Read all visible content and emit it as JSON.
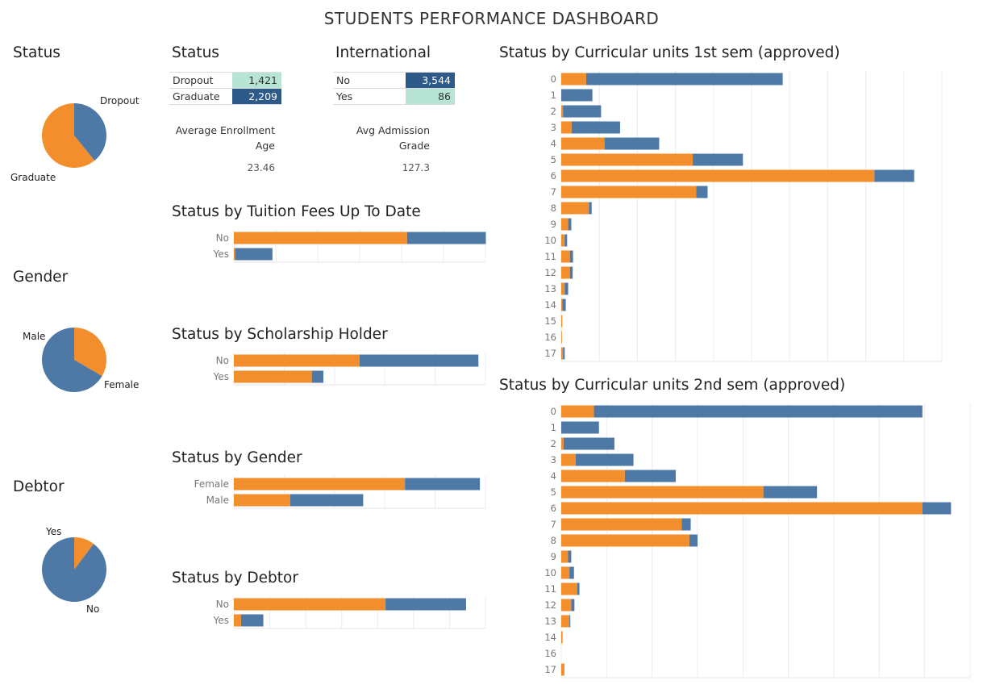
{
  "dashboard_title": "STUDENTS PERFORMANCE DASHBOARD",
  "colors": {
    "dropout": "#F28E2B",
    "graduate": "#4E79A7",
    "highlight_light": "#B7E4D5",
    "highlight_dark": "#2E5A8A"
  },
  "kpis": {
    "enrollment_age_label_line1": "Average Enrollment",
    "enrollment_age_label_line2": "Age",
    "enrollment_age_value": "23.46",
    "admission_grade_label_line1": "Avg Admission",
    "admission_grade_label_line2": "Grade",
    "admission_grade_value": "127.3"
  },
  "chart_data": [
    {
      "id": "status_pie",
      "type": "pie",
      "title": "Status",
      "slices": [
        {
          "label": "Dropout",
          "value": 1421
        },
        {
          "label": "Graduate",
          "value": 2209
        }
      ]
    },
    {
      "id": "gender_pie",
      "type": "pie",
      "title": "Gender",
      "slices": [
        {
          "label": "Male",
          "value": 1213
        },
        {
          "label": "Female",
          "value": 2417
        }
      ]
    },
    {
      "id": "debtor_pie",
      "type": "pie",
      "title": "Debtor",
      "slices": [
        {
          "label": "Yes",
          "value": 375
        },
        {
          "label": "No",
          "value": 3255
        }
      ]
    },
    {
      "id": "status_table",
      "type": "table",
      "title": "Status",
      "rows": [
        {
          "label": "Dropout",
          "value": "1,421"
        },
        {
          "label": "Graduate",
          "value": "2,209"
        }
      ]
    },
    {
      "id": "international_table",
      "type": "table",
      "title": "International",
      "rows": [
        {
          "label": "No",
          "value": "3,544"
        },
        {
          "label": "Yes",
          "value": "86"
        }
      ]
    },
    {
      "id": "tuition_bar",
      "type": "bar",
      "title": "Status by Tuition Fees Up To Date",
      "categories": [
        "No",
        "Yes"
      ],
      "series": [
        {
          "values": [
            2065,
            15
          ]
        },
        {
          "values": [
            940,
            445
          ]
        }
      ],
      "xlim": [
        0,
        3000
      ]
    },
    {
      "id": "scholarship_bar",
      "type": "bar",
      "title": "Status by Scholarship Holder",
      "categories": [
        "No",
        "Yes"
      ],
      "series": [
        {
          "values": [
            1250,
            775
          ]
        },
        {
          "values": [
            1180,
            115
          ]
        }
      ],
      "xlim": [
        0,
        2500
      ]
    },
    {
      "id": "gender_bar",
      "type": "bar",
      "title": "Status by Gender",
      "categories": [
        "Female",
        "Male"
      ],
      "series": [
        {
          "values": [
            1700,
            560
          ]
        },
        {
          "values": [
            745,
            725
          ]
        }
      ],
      "xlim": [
        0,
        2500
      ]
    },
    {
      "id": "debtor_bar",
      "type": "bar",
      "title": "Status by Debtor",
      "categories": [
        "No",
        "Yes"
      ],
      "series": [
        {
          "values": [
            2110,
            100
          ]
        },
        {
          "values": [
            1120,
            310
          ]
        }
      ],
      "xlim": [
        0,
        3500
      ]
    },
    {
      "id": "sem1_bar",
      "type": "bar",
      "title": "Status by Curricular units 1st sem (approved)",
      "categories": [
        "0",
        "1",
        "2",
        "3",
        "4",
        "5",
        "6",
        "7",
        "8",
        "9",
        "10",
        "11",
        "12",
        "13",
        "14",
        "15",
        "16",
        "17"
      ],
      "series": [
        {
          "values": [
            72,
            0,
            5,
            30,
            125,
            380,
            905,
            390,
            80,
            20,
            10,
            25,
            25,
            10,
            3,
            3,
            2,
            5
          ]
        },
        {
          "values": [
            568,
            90,
            110,
            140,
            158,
            145,
            115,
            33,
            8,
            9,
            7,
            9,
            8,
            10,
            10,
            0,
            0,
            5
          ]
        }
      ],
      "xlim": [
        0,
        1100
      ]
    },
    {
      "id": "sem2_bar",
      "type": "bar",
      "title": "Status by Curricular units 2nd sem (approved)",
      "categories": [
        "0",
        "1",
        "2",
        "3",
        "4",
        "5",
        "6",
        "7",
        "8",
        "9",
        "10",
        "11",
        "12",
        "13",
        "14",
        "16",
        "17"
      ],
      "series": [
        {
          "values": [
            72,
            0,
            5,
            32,
            140,
            445,
            795,
            265,
            282,
            15,
            18,
            35,
            22,
            18,
            3,
            0,
            7
          ]
        },
        {
          "values": [
            723,
            83,
            112,
            127,
            112,
            118,
            63,
            20,
            18,
            7,
            10,
            5,
            7,
            2,
            0,
            0,
            0
          ]
        }
      ],
      "xlim": [
        0,
        900
      ]
    }
  ]
}
